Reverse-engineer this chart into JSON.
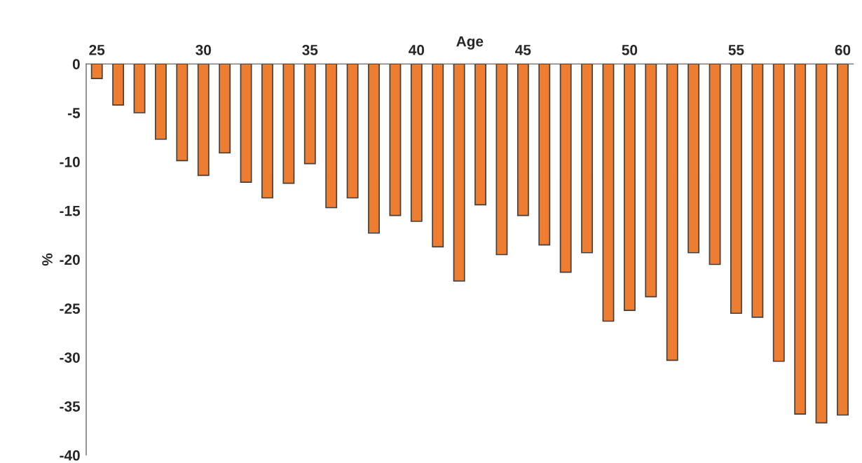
{
  "chart_data": {
    "type": "bar",
    "xlabel": "Age",
    "ylabel": "%",
    "categories": [
      "25",
      null,
      null,
      null,
      null,
      "30",
      null,
      null,
      null,
      null,
      "35",
      null,
      null,
      null,
      null,
      "40",
      null,
      null,
      null,
      null,
      "45",
      null,
      null,
      null,
      null,
      "50",
      null,
      null,
      null,
      null,
      "55",
      null,
      null,
      null,
      null,
      "60"
    ],
    "values": [
      -1.5,
      -4.2,
      -5.0,
      -7.7,
      -9.9,
      -11.4,
      -9.1,
      -12.1,
      -13.7,
      -12.2,
      -10.2,
      -14.7,
      -13.7,
      -17.3,
      -15.5,
      -16.1,
      -18.7,
      -22.2,
      -14.4,
      -19.5,
      -15.5,
      -18.5,
      -21.3,
      -19.3,
      -26.3,
      -25.2,
      -23.8,
      -30.3,
      -19.3,
      -20.5,
      -25.5,
      -25.9,
      -30.4,
      -35.8,
      -36.7,
      -35.9
    ],
    "color": "#ed7d31",
    "ylim": [
      -40,
      0
    ],
    "yticks": [
      0,
      -5,
      -10,
      -15,
      -20,
      -25,
      -30,
      -35,
      -40
    ],
    "grid": false,
    "legend": false
  }
}
